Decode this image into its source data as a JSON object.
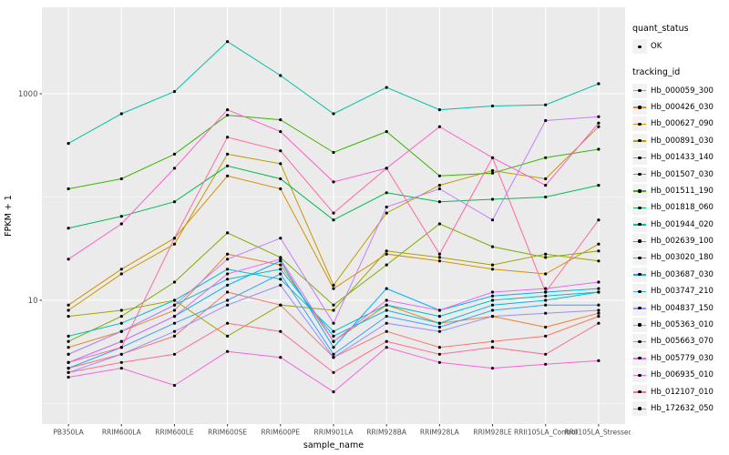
{
  "figure": {
    "background": "#FFFFFF",
    "panel_background": "#EBEBEB",
    "gridline_color": "#FFFFFF",
    "point_color": "#000000",
    "tick_text_color": "#4D4D4D"
  },
  "chart_data": {
    "type": "line",
    "title": "",
    "xlabel": "sample_name",
    "ylabel": "FPKM + 1",
    "y_scale": "log10",
    "grid": true,
    "legend_position": "right",
    "y_ticks": [
      {
        "value": 10,
        "label": "10"
      },
      {
        "value": 1000,
        "label": "1000"
      }
    ],
    "y_minor": [
      1,
      100
    ],
    "ylim": [
      0.65,
      6800
    ],
    "categories": [
      "PB350LA",
      "RRIM600LA",
      "RRIM600LE",
      "RRIM600SE",
      "RRIM600PE",
      "RRIM901LA",
      "RRIM928BA",
      "RRIM928LA",
      "RRIM928LE",
      "RRII105LA_Control",
      "RRII105LA_Stressed"
    ],
    "series": [
      {
        "name": "Hb_000059_300",
        "color": "#F8766D",
        "values": [
          2.2,
          3.0,
          4.5,
          12,
          9,
          2.8,
          5.0,
          3.5,
          4.0,
          4.5,
          7.0
        ]
      },
      {
        "name": "Hb_000426_030",
        "color": "#EA8331",
        "values": [
          3.5,
          5.0,
          8.0,
          28,
          22,
          4.0,
          9.0,
          6.0,
          7.0,
          5.5,
          7.5
        ]
      },
      {
        "name": "Hb_000627_090",
        "color": "#D89000",
        "values": [
          9.0,
          20,
          40,
          160,
          120,
          13,
          28,
          24,
          20,
          18,
          35
        ]
      },
      {
        "name": "Hb_000891_030",
        "color": "#C09B00",
        "values": [
          8.0,
          18,
          35,
          260,
          210,
          14,
          70,
          130,
          180,
          150,
          480
        ]
      },
      {
        "name": "Hb_001433_140",
        "color": "#A3A500",
        "values": [
          7.0,
          8.0,
          10,
          4.5,
          9.0,
          8.0,
          30,
          26,
          22,
          28,
          24
        ]
      },
      {
        "name": "Hb_001507_030",
        "color": "#7CAE00",
        "values": [
          4.0,
          7.0,
          15,
          45,
          26,
          9.0,
          22,
          55,
          33,
          26,
          30
        ]
      },
      {
        "name": "Hb_001511_190",
        "color": "#39B600",
        "values": [
          120,
          150,
          260,
          620,
          560,
          270,
          430,
          160,
          170,
          240,
          290
        ]
      },
      {
        "name": "Hb_001818_060",
        "color": "#00BB4E",
        "values": [
          50,
          65,
          90,
          200,
          150,
          60,
          110,
          90,
          95,
          100,
          130
        ]
      },
      {
        "name": "Hb_001944_020",
        "color": "#00C1A3",
        "values": [
          330,
          640,
          1050,
          3200,
          1500,
          640,
          1150,
          700,
          760,
          780,
          1250
        ]
      },
      {
        "name": "Hb_002639_100",
        "color": "#00BFC4",
        "values": [
          4.5,
          6.0,
          10,
          20,
          16,
          5.0,
          9.0,
          7.0,
          10,
          11,
          12
        ]
      },
      {
        "name": "Hb_003020_180",
        "color": "#00BAE0",
        "values": [
          3.0,
          5.0,
          9.0,
          16,
          20,
          4.5,
          8.0,
          6.0,
          9.0,
          10,
          12
        ]
      },
      {
        "name": "Hb_003687_030",
        "color": "#00B0F6",
        "values": [
          2.5,
          4.0,
          7.0,
          14,
          24,
          3.5,
          13,
          8.0,
          11,
          12,
          13
        ]
      },
      {
        "name": "Hb_003747_210",
        "color": "#35A2FF",
        "values": [
          2.2,
          3.5,
          6.0,
          10,
          18,
          3.0,
          7.0,
          5.5,
          8.0,
          9.0,
          9.0
        ]
      },
      {
        "name": "Hb_004837_150",
        "color": "#9590FF",
        "values": [
          2.0,
          3.0,
          5.0,
          9.0,
          14,
          2.8,
          6.0,
          5.0,
          7.0,
          7.5,
          8.0
        ]
      },
      {
        "name": "Hb_005363_010",
        "color": "#C77CFF",
        "values": [
          3.0,
          5.0,
          9.0,
          25,
          40,
          6.0,
          80,
          120,
          60,
          550,
          600
        ]
      },
      {
        "name": "Hb_005663_070",
        "color": "#E76BF3",
        "values": [
          2.5,
          4.0,
          7.0,
          18,
          25,
          4.0,
          10,
          8.0,
          12,
          13,
          15
        ]
      },
      {
        "name": "Hb_005779_030",
        "color": "#FA62DB",
        "values": [
          1.8,
          2.2,
          1.5,
          3.2,
          2.8,
          1.3,
          3.5,
          2.5,
          2.2,
          2.4,
          2.6
        ]
      },
      {
        "name": "Hb_006935_010",
        "color": "#FF61C9",
        "values": [
          25,
          55,
          190,
          700,
          430,
          140,
          190,
          480,
          240,
          130,
          520
        ]
      },
      {
        "name": "Hb_012107_010",
        "color": "#FF689F",
        "values": [
          2.5,
          3.5,
          40,
          380,
          280,
          70,
          190,
          28,
          240,
          12,
          60
        ]
      },
      {
        "name": "Hb_172632_050",
        "color": "#FF6C91",
        "values": [
          2.0,
          2.5,
          3.0,
          6.0,
          5.0,
          2.0,
          4.0,
          3.0,
          3.5,
          3.0,
          6.0
        ]
      }
    ],
    "legend": {
      "quant_status": {
        "title": "quant_status",
        "items": [
          {
            "label": "OK",
            "marker": "point",
            "color": "#000000"
          }
        ]
      },
      "tracking_id": {
        "title": "tracking_id"
      }
    }
  }
}
